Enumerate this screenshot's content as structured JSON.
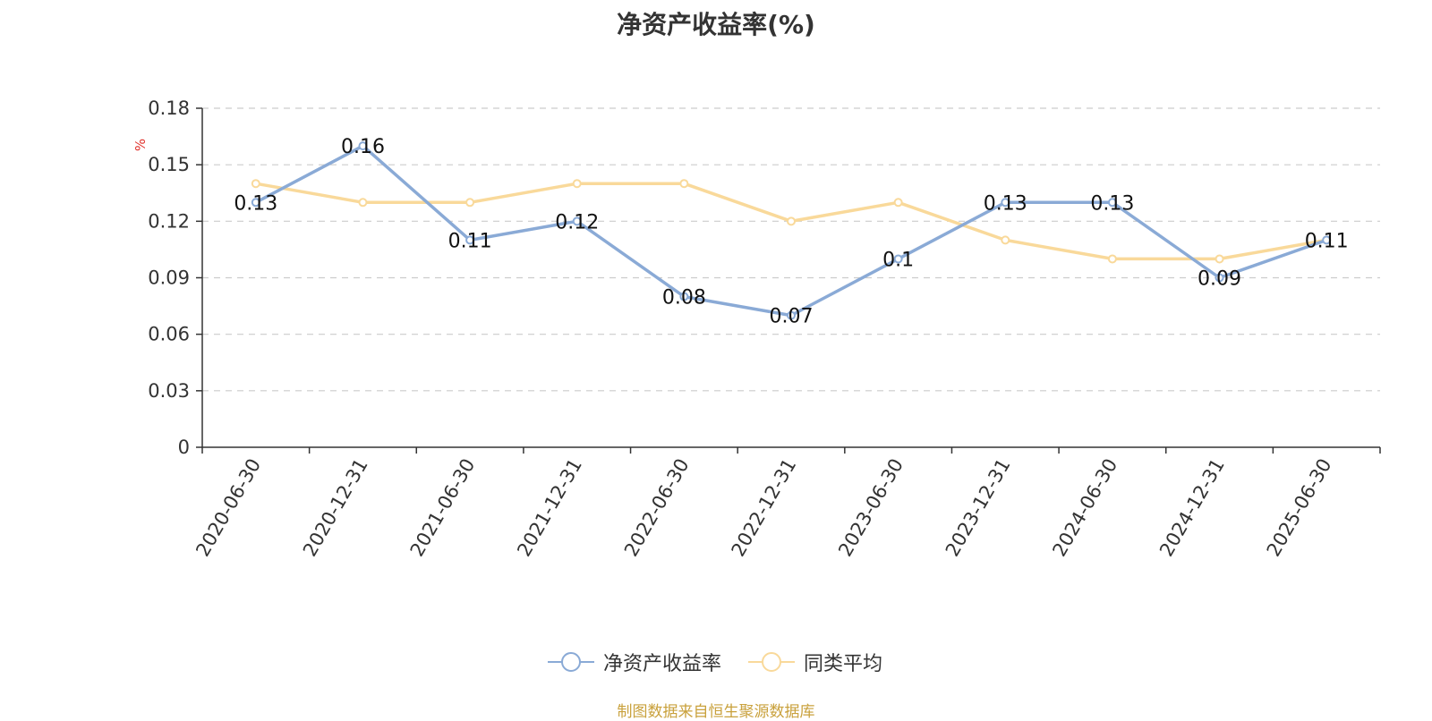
{
  "chart_data": {
    "type": "line",
    "title": "净资产收益率(%)",
    "ylabel": "%",
    "categories": [
      "2020-06-30",
      "2020-12-31",
      "2021-06-30",
      "2021-12-31",
      "2022-06-30",
      "2022-12-31",
      "2023-06-30",
      "2023-12-31",
      "2024-06-30",
      "2024-12-31",
      "2025-06-30"
    ],
    "ylim": [
      0,
      0.18
    ],
    "yticks": [
      "0",
      "0.03",
      "0.06",
      "0.09",
      "0.12",
      "0.15",
      "0.18"
    ],
    "grid": true,
    "legend_position": "bottom",
    "series": [
      {
        "name": "净资产收益率",
        "color": "#8aaad6",
        "values": [
          0.13,
          0.16,
          0.11,
          0.12,
          0.08,
          0.07,
          0.1,
          0.13,
          0.13,
          0.09,
          0.11
        ],
        "labels": [
          "0.13",
          "0.16",
          "0.11",
          "0.12",
          "0.08",
          "0.07",
          "0.1",
          "0.13",
          "0.13",
          "0.09",
          "0.11"
        ]
      },
      {
        "name": "同类平均",
        "color": "#f9d99a",
        "values": [
          0.14,
          0.13,
          0.13,
          0.14,
          0.14,
          0.12,
          0.13,
          0.11,
          0.1,
          0.1,
          0.11
        ]
      }
    ]
  },
  "source_note": "制图数据来自恒生聚源数据库"
}
